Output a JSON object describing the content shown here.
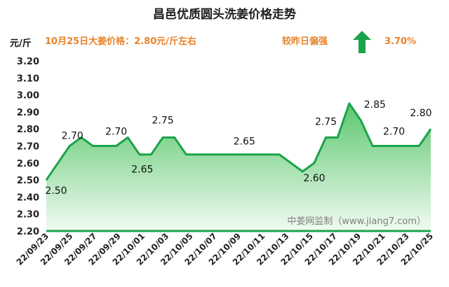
{
  "header": {
    "title": "昌邑优质圆头洗姜价格走势",
    "unit": "元/斤",
    "price_text": "10月25日大姜价格：2.80元/斤左右",
    "compare_text": "较昨日偏强",
    "change_percent": "3.70%",
    "trend_icon": "up-arrow-icon",
    "trend_color": "#1aa34a"
  },
  "watermark": "中姜网监制（www.jiang7.com）",
  "chart_data": {
    "type": "area",
    "title": "昌邑优质圆头洗姜价格走势",
    "ylabel": "元/斤",
    "ylim": [
      2.2,
      3.2
    ],
    "y_ticks": [
      "2.20",
      "2.30",
      "2.40",
      "2.50",
      "2.60",
      "2.70",
      "2.80",
      "2.90",
      "3.00",
      "3.10",
      "3.20"
    ],
    "x_tick_labels": [
      "22/09/23",
      "22/09/25",
      "22/09/27",
      "22/09/29",
      "22/10/01",
      "22/10/03",
      "22/10/05",
      "22/10/07",
      "22/10/09",
      "22/10/11",
      "22/10/13",
      "22/10/15",
      "22/10/17",
      "22/10/19",
      "22/10/21",
      "22/10/23",
      "22/10/25"
    ],
    "series": [
      {
        "values": [
          2.5,
          2.6,
          2.7,
          2.75,
          2.7,
          2.7,
          2.7,
          2.75,
          2.65,
          2.65,
          2.75,
          2.75,
          2.65,
          2.65,
          2.65,
          2.65,
          2.65,
          2.65,
          2.65,
          2.65,
          2.65,
          2.6,
          2.55,
          2.6,
          2.75,
          2.75,
          2.95,
          2.85,
          2.7,
          2.7,
          2.7,
          2.7,
          2.7,
          2.8
        ]
      }
    ],
    "data_labels": [
      {
        "index": 0,
        "text": "2.50"
      },
      {
        "index": 2,
        "text": "2.70"
      },
      {
        "index": 6,
        "text": "2.70"
      },
      {
        "index": 8,
        "text": "2.65"
      },
      {
        "index": 10,
        "text": "2.75"
      },
      {
        "index": 17,
        "text": "2.65"
      },
      {
        "index": 23,
        "text": "2.60"
      },
      {
        "index": 24,
        "text": "2.75"
      },
      {
        "index": 27,
        "text": "2.85"
      },
      {
        "index": 29,
        "text": "2.70"
      },
      {
        "index": 33,
        "text": "2.80"
      }
    ],
    "colors": {
      "line": "#1aa34a",
      "fill_top": "#5cc76e",
      "fill_bottom": "#f1fbf2"
    },
    "grid": false
  }
}
